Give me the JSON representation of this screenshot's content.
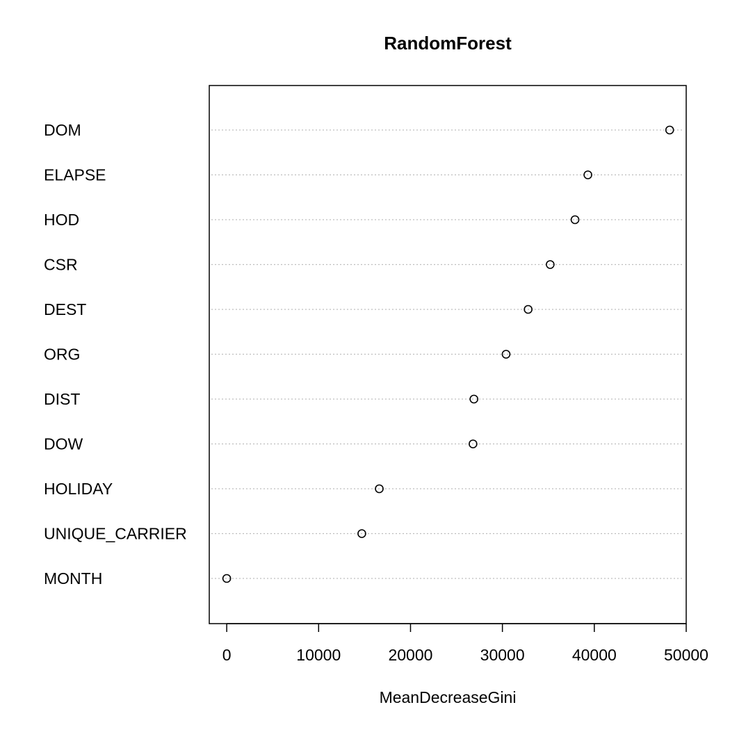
{
  "chart_data": {
    "type": "scatter",
    "title": "RandomForest",
    "xlabel": "MeanDecreaseGini",
    "ylabel": "",
    "xlim": [
      -1900,
      50000
    ],
    "xticks": [
      0,
      10000,
      20000,
      30000,
      40000,
      50000
    ],
    "xtick_labels": [
      "0",
      "10000",
      "20000",
      "30000",
      "40000",
      "50000"
    ],
    "grid": "dotted horizontal lines at each category",
    "categories": [
      "DOM",
      "ELAPSE",
      "HOD",
      "CSR",
      "DEST",
      "ORG",
      "DIST",
      "DOW",
      "HOLIDAY",
      "UNIQUE_CARRIER",
      "MONTH"
    ],
    "values": [
      48200,
      39300,
      37900,
      35200,
      32800,
      30400,
      26900,
      26800,
      16600,
      14700,
      0
    ]
  }
}
